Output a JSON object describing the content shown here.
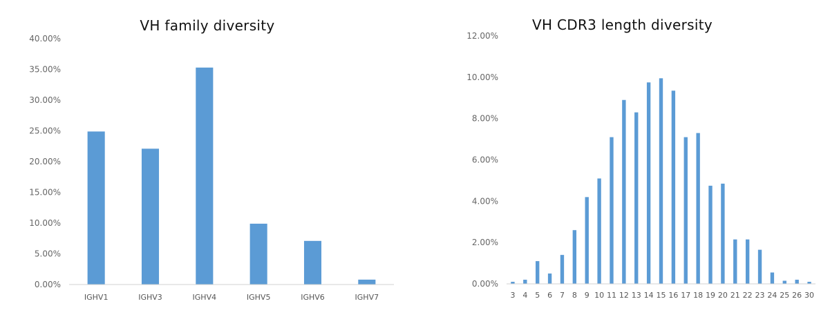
{
  "chart_data": [
    {
      "type": "bar",
      "title": "VH family diversity",
      "categories": [
        "IGHV1",
        "IGHV3",
        "IGHV4",
        "IGHV5",
        "IGHV6",
        "IGHV7"
      ],
      "values": [
        24.9,
        22.1,
        35.3,
        9.9,
        7.1,
        0.8
      ],
      "ylim": [
        0,
        40
      ],
      "yticks": [
        "0.00%",
        "5.00%",
        "10.00%",
        "15.00%",
        "20.00%",
        "25.00%",
        "30.00%",
        "35.00%",
        "40.00%"
      ],
      "color": "#5b9bd5",
      "grid": false
    },
    {
      "type": "bar",
      "title": "VH CDR3 length diversity",
      "categories": [
        "3",
        "4",
        "5",
        "6",
        "7",
        "8",
        "9",
        "10",
        "11",
        "12",
        "13",
        "14",
        "15",
        "16",
        "17",
        "18",
        "19",
        "20",
        "21",
        "22",
        "23",
        "24",
        "25",
        "26",
        "30"
      ],
      "values": [
        0.1,
        0.2,
        1.1,
        0.5,
        1.4,
        2.6,
        4.2,
        5.1,
        7.1,
        8.9,
        8.3,
        9.75,
        9.95,
        9.35,
        7.1,
        7.3,
        4.75,
        4.85,
        2.15,
        2.15,
        1.65,
        0.55,
        0.15,
        0.2,
        0.1
      ],
      "ylim": [
        0,
        12
      ],
      "yticks": [
        "0.00%",
        "2.00%",
        "4.00%",
        "6.00%",
        "8.00%",
        "10.00%",
        "12.00%"
      ],
      "color": "#5b9bd5",
      "grid": false
    }
  ]
}
